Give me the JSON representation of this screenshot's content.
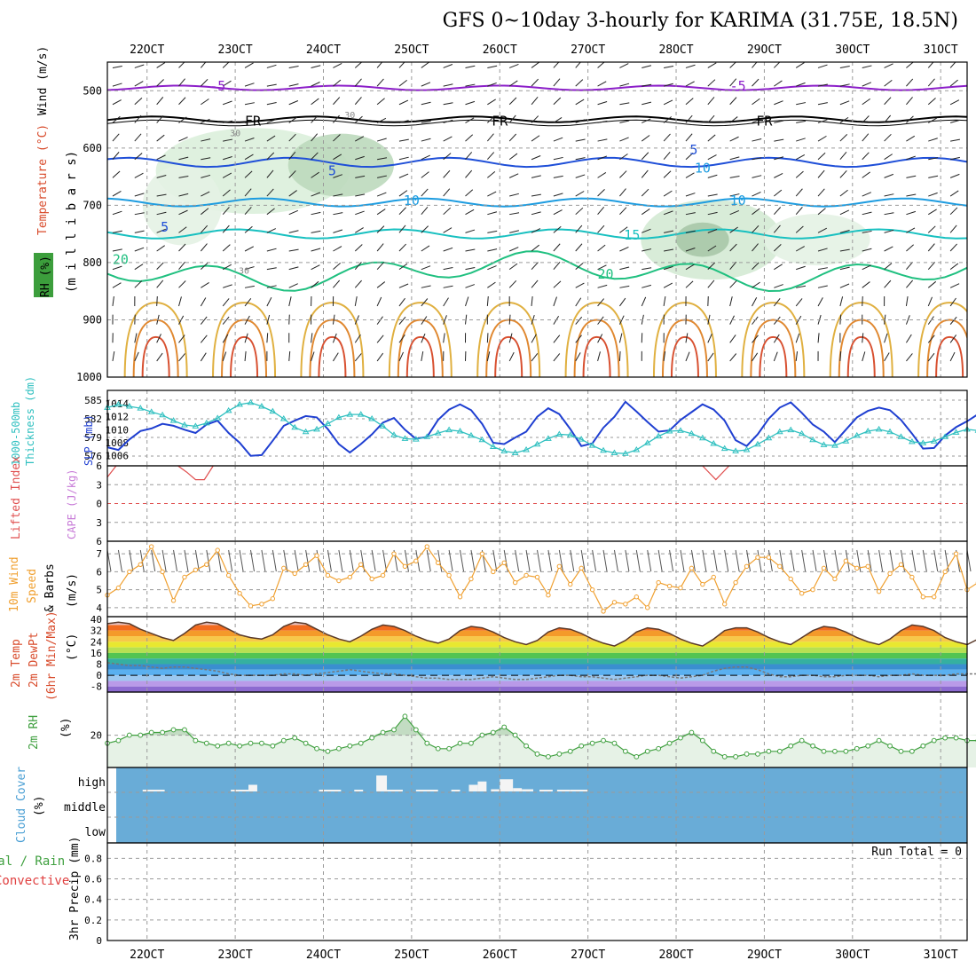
{
  "title": "GFS 0~10day 3-hourly for KARIMA (31.75E, 18.5N)",
  "x_axis": {
    "labels": [
      "22OCT",
      "23OCT",
      "24OCT",
      "25OCT",
      "26OCT",
      "27OCT",
      "28OCT",
      "29OCT",
      "30OCT",
      "31OCT"
    ],
    "day_range": [
      21.55,
      31.3
    ]
  },
  "colors": {
    "panel_border": "#000000",
    "grid": "#9a9a9a",
    "rh_fill": "#c9e6c9",
    "cloud_bg": "#69acd7",
    "wind_line": "#f0a030",
    "slp_line": "#1f3fd1",
    "thickness_line": "#30c0c0",
    "rh2m_line": "#40a040",
    "dew_line": "#777777"
  },
  "panel_labels": {
    "upper": [
      "RH (%)",
      "Temperature (°C)",
      "Wind (m/s)",
      "(m i l l i b a r s)"
    ],
    "thickness": [
      "1000-500mb",
      "Thickness (dm)",
      "SLP (mb)"
    ],
    "cape": [
      "Lifted Index",
      "CAPE (J/kg)"
    ],
    "wind10": [
      "10m Wind",
      "Speed",
      "& Barbs",
      "(m/s)"
    ],
    "temp2m": [
      "2m Temp",
      "2m DewPt",
      "(6hr Min/Max)",
      "(°C)"
    ],
    "rh2m": [
      "2m RH",
      "(%)"
    ],
    "cloud": [
      "Cloud Cover",
      "(%)"
    ],
    "precip": [
      "Total / Rain",
      "Convective",
      "3hr Precip (mm)"
    ]
  },
  "run_total": "Run Total = 0",
  "chart_data": [
    {
      "type": "heatmap",
      "panel": "upper-air cross section",
      "ylabel": "millibars",
      "y_ticks": [
        500,
        600,
        700,
        800,
        900,
        1000
      ],
      "ylim": [
        450,
        1000
      ],
      "isotherm_labels": [
        {
          "text": "-5",
          "x": 22.8,
          "p": 492
        },
        {
          "text": "-5",
          "x": 28.7,
          "p": 492
        },
        {
          "text": "FR",
          "x": 23.2,
          "p": 553
        },
        {
          "text": "FR",
          "x": 26.0,
          "p": 553
        },
        {
          "text": "FR",
          "x": 29.0,
          "p": 553
        },
        {
          "text": "5",
          "x": 24.1,
          "p": 640
        },
        {
          "text": "5",
          "x": 28.2,
          "p": 603
        },
        {
          "text": "10",
          "x": 25.0,
          "p": 692
        },
        {
          "text": "10",
          "x": 28.7,
          "p": 692
        },
        {
          "text": "5",
          "x": 22.2,
          "p": 738
        },
        {
          "text": "15",
          "x": 27.5,
          "p": 752
        },
        {
          "text": "20",
          "x": 21.7,
          "p": 795
        },
        {
          "text": "20",
          "x": 27.2,
          "p": 820
        },
        {
          "text": "30",
          "x": 23.0,
          "p": 572
        },
        {
          "text": "30",
          "x": 24.3,
          "p": 540
        },
        {
          "text": "10",
          "x": 28.3,
          "p": 635
        },
        {
          "text": "30",
          "x": 23.1,
          "p": 812
        }
      ],
      "isotherms": [
        {
          "label": "-5",
          "color": "#8c1fc9",
          "base": 495,
          "amp": 4
        },
        {
          "label": "FR",
          "color": "#000000",
          "base": 550,
          "amp": 5
        },
        {
          "label": "5",
          "color": "#1f4fd8",
          "base": 625,
          "amp": 8
        },
        {
          "label": "10",
          "color": "#1d9ce0",
          "base": 695,
          "amp": 7
        },
        {
          "label": "15",
          "color": "#18c0c0",
          "base": 750,
          "amp": 8
        },
        {
          "label": "20",
          "color": "#20c080",
          "base": 815,
          "amp": 20
        }
      ]
    },
    {
      "type": "line",
      "panel": "thickness and SLP",
      "xlabel": "",
      "y_left_ticks": [
        576,
        579,
        582,
        585
      ],
      "y_left_range": [
        575,
        586
      ],
      "y_right_ticks": [
        1006,
        1008,
        1010,
        1012,
        1014
      ],
      "y_right_range": [
        1005,
        1015.5
      ],
      "series": [
        {
          "name": "SLP (mb)",
          "axis": "right",
          "x_start": 21.55,
          "x_step": 0.125,
          "values": [
            1007.3,
            1006.9,
            1008.5,
            1009.8,
            1010.2,
            1010.9,
            1010.6,
            1010.0,
            1009.5,
            1010.8,
            1011.4,
            1009.5,
            1008.0,
            1006.0,
            1006.1,
            1008.3,
            1010.6,
            1011.4,
            1012.1,
            1011.9,
            1010.1,
            1007.8,
            1006.5,
            1007.8,
            1009.3,
            1011.1,
            1011.8,
            1010.0,
            1008.6,
            1008.9,
            1011.5,
            1013.1,
            1013.9,
            1013.0,
            1010.9,
            1008.0,
            1007.8,
            1008.8,
            1009.7,
            1012.0,
            1013.3,
            1012.4,
            1010.1,
            1007.5,
            1007.9,
            1010.3,
            1012.0,
            1014.3,
            1012.8,
            1011.2,
            1009.7,
            1009.9,
            1011.5,
            1012.7,
            1013.9,
            1013.1,
            1011.4,
            1008.4,
            1007.5,
            1009.3,
            1011.7,
            1013.4,
            1014.2,
            1012.6,
            1010.8,
            1009.7,
            1008.1,
            1010.0,
            1011.9,
            1012.9,
            1013.4,
            1013.0,
            1011.5,
            1009.4,
            1007.1,
            1007.2,
            1009.1,
            1010.4,
            1011.3,
            1012.4,
            1011.6,
            1010.1,
            1009.8,
            1010.1,
            1010.9,
            1012.5,
            1013.4,
            1012.8,
            1011.1,
            1009.6,
            1009.8,
            1010.1,
            1010.7,
            1011.9,
            1011.2,
            1010.5,
            1011.0,
            1011.5,
            1012.6,
            1013.1,
            1013.3
          ]
        },
        {
          "name": "1000-500mb Thickness (dm)",
          "axis": "left",
          "x_start": 21.55,
          "x_step": 0.125,
          "values": [
            583.8,
            584.3,
            584.0,
            583.7,
            583.1,
            582.6,
            581.7,
            581.0,
            580.8,
            581.3,
            582.1,
            583.3,
            584.3,
            584.6,
            584.0,
            583.2,
            582.0,
            580.6,
            579.9,
            580.3,
            581.2,
            582.2,
            582.7,
            582.7,
            582.0,
            580.8,
            579.4,
            578.8,
            578.7,
            579.1,
            579.7,
            580.2,
            580.0,
            579.3,
            578.6,
            577.5,
            576.8,
            576.5,
            577.0,
            577.9,
            578.8,
            579.5,
            579.4,
            578.7,
            577.7,
            576.9,
            576.5,
            576.4,
            577.0,
            578.1,
            579.2,
            580.0,
            580.1,
            579.6,
            578.9,
            578.0,
            577.2,
            576.8,
            577.0,
            577.9,
            578.9,
            579.9,
            580.2,
            579.6,
            578.6,
            577.8,
            577.7,
            578.4,
            579.3,
            580.0,
            580.3,
            579.9,
            579.1,
            578.3,
            578.1,
            578.4,
            579.1,
            579.8,
            580.3,
            580.1,
            579.4,
            578.5,
            577.8,
            577.4,
            577.3,
            577.6,
            578.2,
            578.8,
            579.3,
            579.4,
            579.2,
            578.8,
            578.4,
            577.9,
            577.5,
            577.1,
            576.9,
            576.7,
            576.4,
            576.1,
            576.3
          ]
        }
      ]
    },
    {
      "type": "line",
      "panel": "CAPE and Lifted Index",
      "y_ticks": [
        6,
        3,
        0,
        -3,
        -6
      ],
      "ylim": [
        6,
        -6
      ],
      "series": [
        {
          "name": "Lifted Index",
          "x": [
            21.55,
            21.65
          ],
          "values": [
            4.2,
            6.0
          ]
        },
        {
          "name": "Lifted Index",
          "x": [
            22.35,
            22.45,
            22.55,
            22.65,
            22.75
          ],
          "values": [
            6.0,
            5.0,
            3.8,
            3.8,
            6.0
          ]
        },
        {
          "name": "Lifted Index",
          "x": [
            28.3,
            28.45,
            28.6
          ],
          "values": [
            6.0,
            3.8,
            6.0
          ]
        }
      ],
      "reference_line": 0
    },
    {
      "type": "line",
      "panel": "10m Wind Speed",
      "ylabel": "m/s",
      "y_ticks": [
        4,
        5,
        6,
        7
      ],
      "ylim": [
        3.5,
        7.7
      ],
      "series": [
        {
          "name": "Speed",
          "x_start": 21.55,
          "x_step": 0.125,
          "values": [
            4.7,
            5.1,
            6.0,
            6.4,
            7.4,
            6.0,
            4.4,
            5.7,
            6.1,
            6.4,
            7.2,
            5.8,
            4.8,
            4.1,
            4.2,
            4.5,
            6.2,
            5.9,
            6.4,
            6.9,
            5.8,
            5.5,
            5.7,
            6.4,
            5.6,
            5.8,
            7.0,
            6.3,
            6.6,
            7.4,
            6.5,
            5.8,
            4.6,
            5.6,
            7.0,
            6.0,
            6.5,
            5.4,
            5.8,
            5.7,
            4.7,
            6.3,
            5.3,
            6.2,
            5.0,
            3.8,
            4.3,
            4.2,
            4.6,
            4.0,
            5.4,
            5.2,
            5.1,
            6.2,
            5.3,
            5.7,
            4.2,
            5.4,
            6.3,
            6.8,
            6.8,
            6.3,
            5.6,
            4.8,
            5.0,
            6.2,
            5.6,
            6.6,
            6.2,
            6.3,
            4.9,
            5.9,
            6.4,
            5.7,
            4.6,
            4.6,
            6.0,
            7.0,
            5.0,
            5.4,
            5.8,
            5.7,
            6.7,
            6.9,
            5.6,
            4.6,
            4.9,
            5.5,
            6.4,
            5.6,
            5.2,
            5.4,
            5.3,
            6.3,
            5.7,
            5.4,
            5.3,
            6.3,
            4.8,
            4.5,
            5.9
          ]
        }
      ]
    },
    {
      "type": "area",
      "panel": "2m Temp and DewPt",
      "ylabel": "°C",
      "y_ticks": [
        40,
        32,
        24,
        16,
        8,
        0,
        -8
      ],
      "ylim": [
        -12,
        42
      ],
      "series": [
        {
          "name": "2m Temp",
          "x_start": 21.55,
          "x_step": 0.125,
          "values": [
            37,
            38,
            37,
            33,
            30,
            27,
            25,
            30,
            36,
            38,
            37,
            33,
            29,
            27,
            26,
            29,
            35,
            38,
            37,
            33,
            29,
            26,
            24,
            28,
            33,
            36,
            35,
            32,
            28,
            25,
            23,
            26,
            32,
            35,
            34,
            31,
            27,
            24,
            22,
            25,
            31,
            34,
            33,
            30,
            26,
            23,
            21,
            25,
            31,
            34,
            33,
            30,
            26,
            23,
            21,
            26,
            32,
            34,
            34,
            31,
            27,
            24,
            22,
            27,
            32,
            35,
            34,
            31,
            27,
            24,
            22,
            26,
            32,
            36,
            35,
            32,
            27,
            24,
            22,
            26,
            31,
            35,
            34,
            31,
            26,
            23,
            21,
            25,
            31,
            34,
            34,
            30,
            26,
            23,
            21,
            23
          ]
        },
        {
          "name": "2m DewPt",
          "x_start": 21.55,
          "x_step": 0.125,
          "values": [
            9,
            8,
            7,
            7,
            6,
            5,
            6,
            6,
            5,
            4,
            3,
            1,
            0,
            0,
            0,
            0,
            1,
            1,
            0,
            1,
            2,
            3,
            4,
            3,
            2,
            1,
            1,
            0,
            -1,
            -2,
            -2,
            -3,
            -3,
            -3,
            -2,
            -1,
            -2,
            -3,
            -3,
            -2,
            -1,
            0,
            0,
            -1,
            -1,
            -2,
            -3,
            -2,
            -1,
            0,
            0,
            -1,
            -2,
            -1,
            0,
            3,
            5,
            6,
            6,
            4,
            1,
            -1,
            -1,
            0,
            0,
            -1,
            -1,
            0,
            0,
            0,
            -1,
            0,
            0,
            1,
            0,
            0,
            0,
            1,
            1,
            1,
            0,
            -1,
            -2,
            -1,
            -1,
            -2,
            -1,
            -1,
            0,
            1,
            2,
            2,
            3,
            3,
            4,
            4
          ]
        }
      ]
    },
    {
      "type": "area",
      "panel": "2m RH",
      "ylabel": "%",
      "y_ticks": [
        20
      ],
      "ylim": [
        8,
        36
      ],
      "series": [
        {
          "name": "2m RH",
          "x_start": 21.55,
          "x_step": 0.125,
          "values": [
            17,
            18,
            20,
            20,
            21,
            21,
            22,
            22,
            18,
            17,
            16,
            17,
            16,
            17,
            17,
            16,
            18,
            19,
            17,
            15,
            14,
            15,
            16,
            17,
            19,
            21,
            22,
            27,
            22,
            17,
            15,
            15,
            17,
            17,
            20,
            21,
            23,
            20,
            16,
            13,
            12,
            13,
            14,
            16,
            17,
            18,
            17,
            14,
            12,
            14,
            15,
            17,
            19,
            21,
            18,
            14,
            12,
            12,
            13,
            13,
            14,
            14,
            16,
            18,
            16,
            14,
            14,
            14,
            15,
            16,
            18,
            16,
            14,
            14,
            16,
            18,
            19,
            19,
            18,
            18,
            18,
            17,
            16,
            17,
            17,
            17,
            15,
            13,
            14,
            16,
            18,
            20,
            24,
            26,
            24,
            20,
            17,
            15,
            16,
            18,
            24
          ]
        }
      ]
    },
    {
      "type": "bar",
      "panel": "Cloud Cover",
      "y_tick_labels": [
        "low",
        "middle",
        "high"
      ],
      "bars": [
        {
          "level": "high",
          "x0": 21.95,
          "x1": 22.2,
          "value": 5
        },
        {
          "level": "high",
          "x0": 22.95,
          "x1": 23.15,
          "value": 5
        },
        {
          "level": "high",
          "x0": 23.15,
          "x1": 23.25,
          "value": 30
        },
        {
          "level": "high",
          "x0": 23.95,
          "x1": 24.2,
          "value": 5
        },
        {
          "level": "high",
          "x0": 24.35,
          "x1": 24.45,
          "value": 5
        },
        {
          "level": "high",
          "x0": 24.6,
          "x1": 24.72,
          "value": 72
        },
        {
          "level": "high",
          "x0": 24.72,
          "x1": 24.9,
          "value": 5
        },
        {
          "level": "high",
          "x0": 25.05,
          "x1": 25.3,
          "value": 5
        },
        {
          "level": "high",
          "x0": 25.45,
          "x1": 25.55,
          "value": 5
        },
        {
          "level": "high",
          "x0": 25.65,
          "x1": 25.75,
          "value": 30
        },
        {
          "level": "high",
          "x0": 25.75,
          "x1": 25.85,
          "value": 45
        },
        {
          "level": "high",
          "x0": 25.9,
          "x1": 26.0,
          "value": 10
        },
        {
          "level": "high",
          "x0": 26.0,
          "x1": 26.15,
          "value": 55
        },
        {
          "level": "high",
          "x0": 26.15,
          "x1": 26.25,
          "value": 15
        },
        {
          "level": "high",
          "x0": 26.25,
          "x1": 26.38,
          "value": 10
        },
        {
          "level": "high",
          "x0": 26.45,
          "x1": 26.6,
          "value": 5
        },
        {
          "level": "high",
          "x0": 26.65,
          "x1": 26.8,
          "value": 5
        },
        {
          "level": "high",
          "x0": 26.8,
          "x1": 27.0,
          "value": 5
        }
      ]
    },
    {
      "type": "bar",
      "panel": "3hr Precip",
      "ylabel": "mm",
      "y_ticks": [
        0,
        0.2,
        0.4,
        0.6,
        0.8
      ],
      "ylim": [
        0,
        0.95
      ],
      "values": []
    }
  ]
}
